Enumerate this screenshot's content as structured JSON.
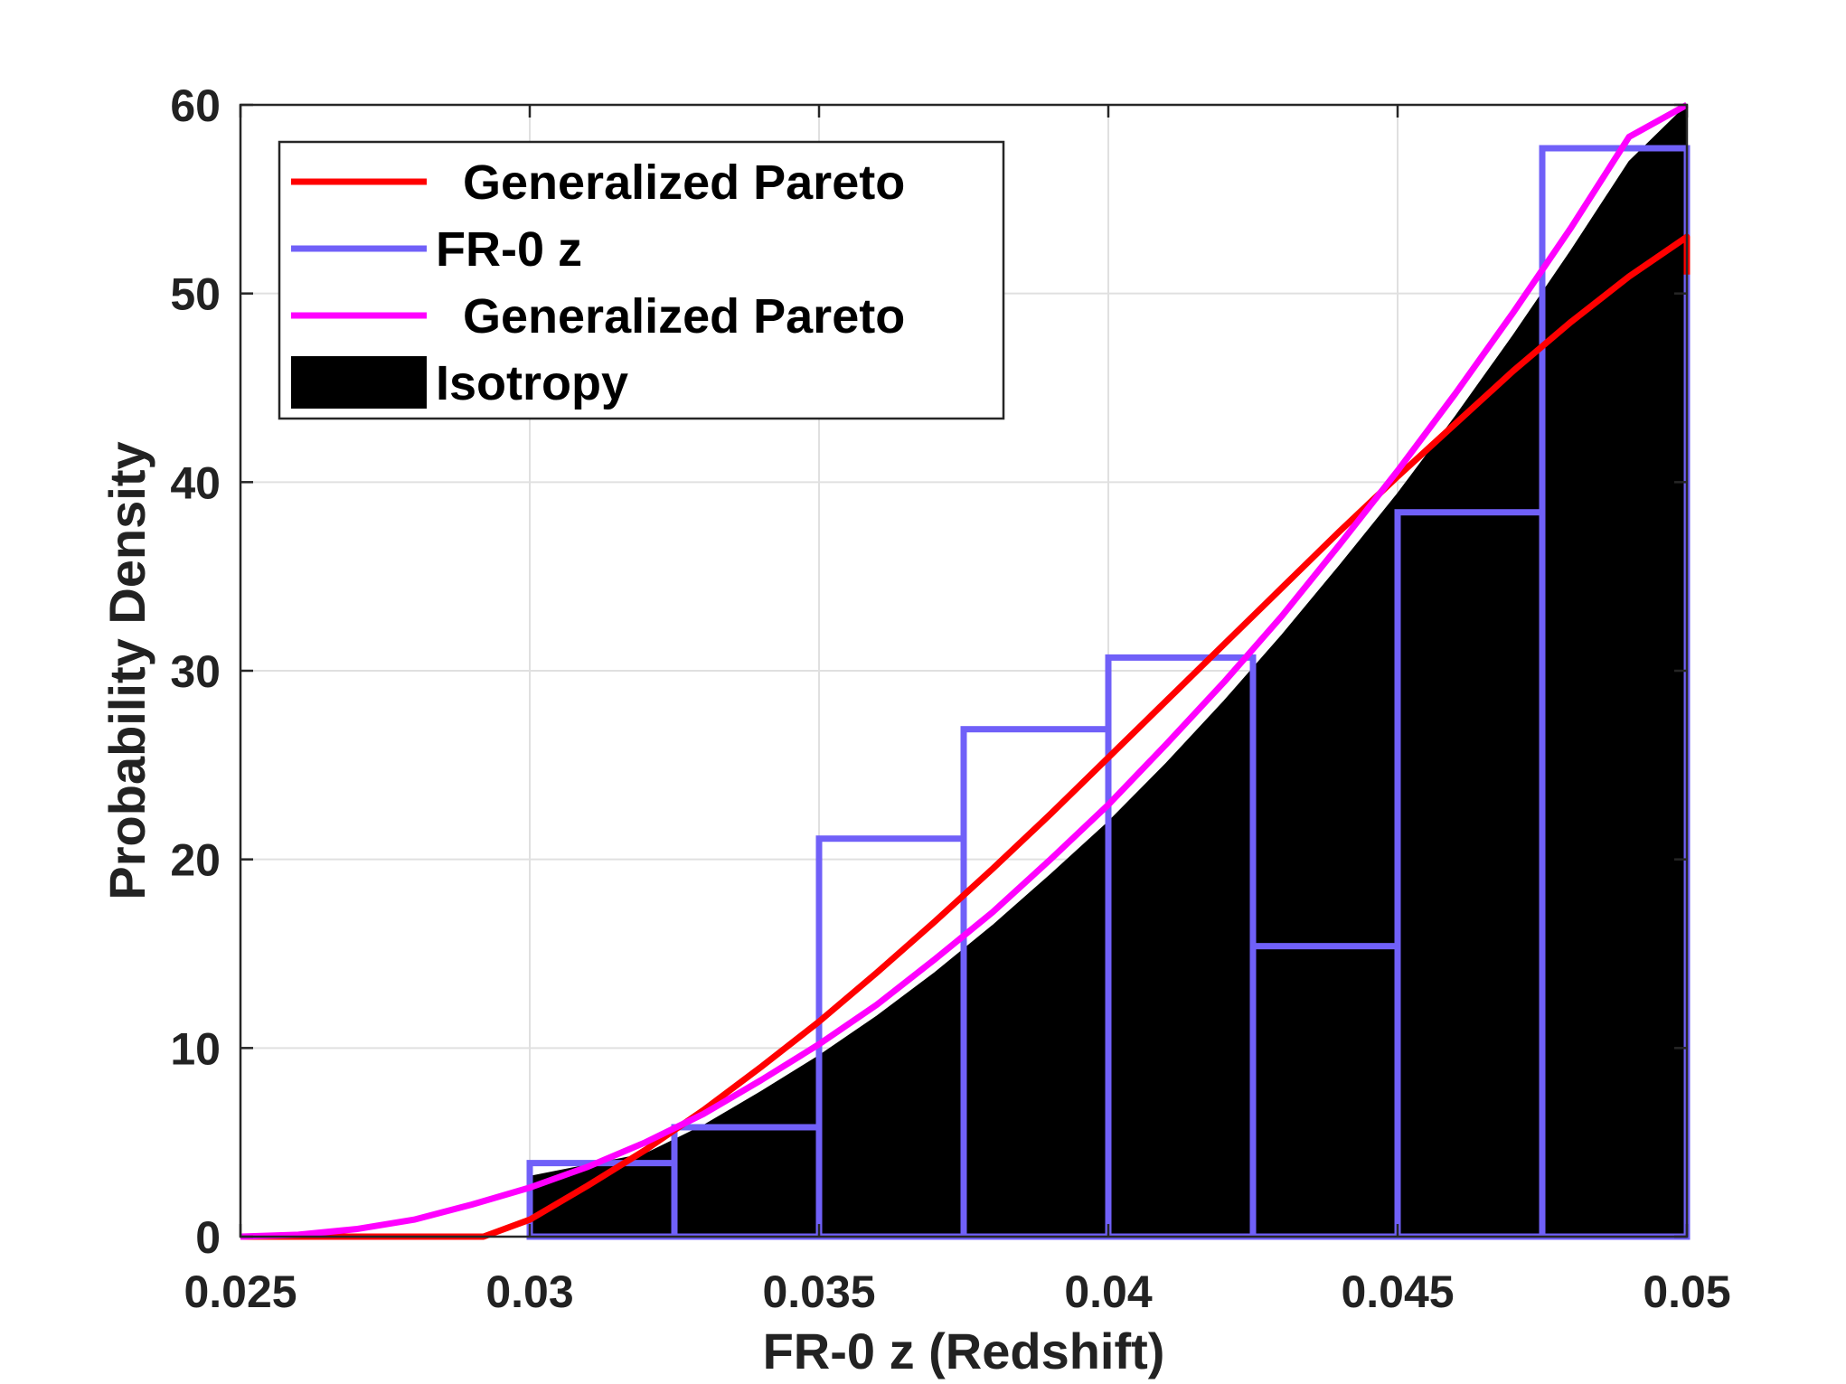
{
  "chart_data": {
    "type": "histogram",
    "xlabel": "FR-0 z  (Redshift)",
    "ylabel": "Probability Density",
    "xlim": [
      0.025,
      0.05
    ],
    "ylim": [
      0,
      60
    ],
    "x_ticks": [
      "0.025",
      "0.03",
      "0.035",
      "0.04",
      "0.045",
      "0.05"
    ],
    "y_ticks": [
      "0",
      "10",
      "20",
      "30",
      "40",
      "50",
      "60"
    ],
    "grid": true,
    "legend_position": "top-left",
    "legend": [
      {
        "label": "  Generalized Pareto",
        "kind": "line",
        "color": "#ff0000"
      },
      {
        "label": "FR-0 z",
        "kind": "line",
        "color": "#7060f8"
      },
      {
        "label": "  Generalized Pareto",
        "kind": "line",
        "color": "#ff00ff"
      },
      {
        "label": "Isotropy",
        "kind": "patch",
        "color": "#000000"
      }
    ],
    "series": [
      {
        "name": "FR-0 z",
        "type": "histogram-outline",
        "color": "#7060f8",
        "bin_edges": [
          0.03,
          0.0325,
          0.035,
          0.0375,
          0.04,
          0.0425,
          0.045,
          0.0475,
          0.05
        ],
        "values": [
          3.9,
          5.8,
          21.1,
          26.9,
          30.7,
          15.4,
          38.4,
          57.7
        ]
      },
      {
        "name": "Isotropy",
        "type": "area",
        "color": "#000000",
        "x": [
          0.03,
          0.031,
          0.032,
          0.033,
          0.034,
          0.035,
          0.036,
          0.037,
          0.038,
          0.039,
          0.04,
          0.041,
          0.042,
          0.043,
          0.044,
          0.045,
          0.046,
          0.047,
          0.048,
          0.049,
          0.05
        ],
        "y": [
          3.2,
          3.8,
          4.4,
          5.9,
          7.7,
          9.6,
          11.7,
          14.0,
          16.5,
          19.2,
          22.0,
          25.1,
          28.4,
          31.9,
          35.6,
          39.4,
          43.5,
          47.8,
          52.3,
          57.0,
          60.0
        ]
      },
      {
        "name": "Generalized Pareto",
        "type": "line",
        "color": "#ff00ff",
        "x": [
          0.025,
          0.026,
          0.027,
          0.028,
          0.029,
          0.03,
          0.031,
          0.032,
          0.033,
          0.034,
          0.035,
          0.036,
          0.037,
          0.038,
          0.039,
          0.04,
          0.041,
          0.042,
          0.043,
          0.044,
          0.045,
          0.046,
          0.047,
          0.048,
          0.049,
          0.05
        ],
        "y": [
          0.0,
          0.1,
          0.4,
          0.9,
          1.7,
          2.6,
          3.7,
          5.0,
          6.5,
          8.3,
          10.2,
          12.3,
          14.7,
          17.2,
          20.0,
          22.9,
          26.1,
          29.4,
          32.9,
          36.7,
          40.6,
          44.7,
          49.0,
          53.5,
          58.3,
          60.0
        ]
      },
      {
        "name": "Generalized Pareto",
        "type": "line",
        "color": "#ff0000",
        "x": [
          0.025,
          0.0292,
          0.03,
          0.031,
          0.032,
          0.033,
          0.034,
          0.035,
          0.036,
          0.037,
          0.038,
          0.039,
          0.04,
          0.041,
          0.042,
          0.043,
          0.044,
          0.045,
          0.046,
          0.047,
          0.048,
          0.049,
          0.05,
          0.05
        ],
        "y": [
          0.0,
          0.0,
          0.9,
          2.7,
          4.6,
          6.7,
          9.0,
          11.4,
          14.0,
          16.7,
          19.5,
          22.4,
          25.4,
          28.4,
          31.4,
          34.4,
          37.4,
          40.3,
          43.1,
          45.9,
          48.5,
          50.9,
          53.0,
          51.0
        ]
      }
    ]
  }
}
